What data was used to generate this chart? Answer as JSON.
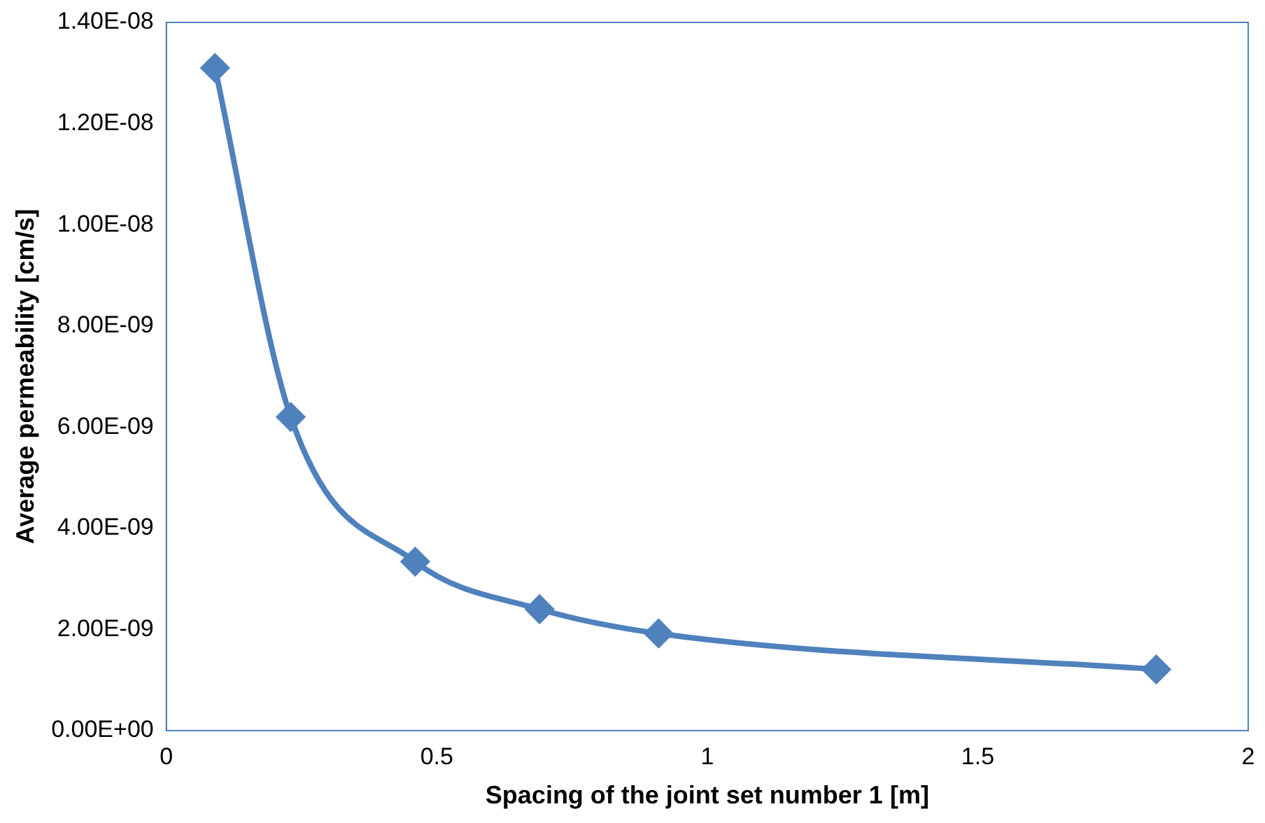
{
  "chart_data": {
    "type": "line",
    "xlabel": "Spacing of the joint set number 1 [m]",
    "ylabel": "Average permeability [cm/s]",
    "x": [
      0.09,
      0.23,
      0.46,
      0.69,
      0.91,
      1.83
    ],
    "series": [
      {
        "color": "#4f81bd",
        "values": [
          1.31e-08,
          6.2e-09,
          3.34e-09,
          2.4e-09,
          1.92e-09,
          1.21e-09
        ]
      }
    ],
    "xlim": [
      0,
      2
    ],
    "xticks": [
      0,
      0.5,
      1,
      1.5,
      2
    ],
    "ylim": [
      0,
      1.4e-08
    ],
    "yticks": [
      {
        "value": 0,
        "label": "0.00E+00"
      },
      {
        "value": 2e-09,
        "label": "2.00E-09"
      },
      {
        "value": 4e-09,
        "label": "4.00E-09"
      },
      {
        "value": 6e-09,
        "label": "6.00E-09"
      },
      {
        "value": 8e-09,
        "label": "8.00E-09"
      },
      {
        "value": 1e-08,
        "label": "1.00E-08"
      },
      {
        "value": 1.2e-08,
        "label": "1.20E-08"
      },
      {
        "value": 1.4e-08,
        "label": "1.40E-08"
      }
    ],
    "grid": false,
    "legend": false,
    "marker": "diamond",
    "line_style": "solid"
  }
}
